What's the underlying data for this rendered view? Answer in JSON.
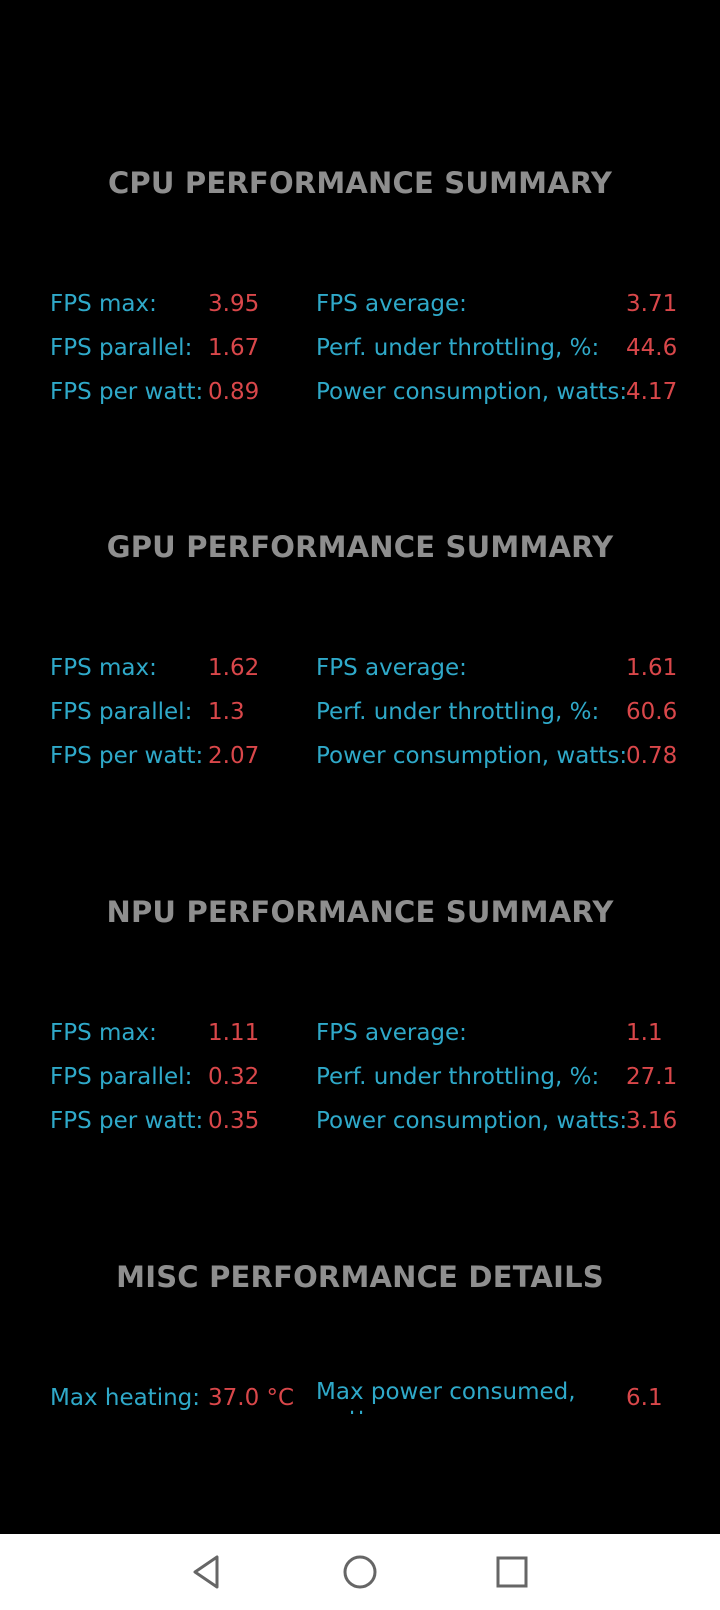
{
  "sections": [
    {
      "title": "CPU PERFORMANCE SUMMARY",
      "rows": [
        {
          "left_label": "FPS max:",
          "left_value": "3.95",
          "right_label": "FPS average:",
          "right_value": "3.71"
        },
        {
          "left_label": "FPS parallel:",
          "left_value": "1.67",
          "right_label": "Perf. under throttling, %:",
          "right_value": "44.6"
        },
        {
          "left_label": "FPS per watt:",
          "left_value": "0.89",
          "right_label": "Power consumption, watts:",
          "right_value": "4.17"
        }
      ]
    },
    {
      "title": "GPU PERFORMANCE SUMMARY",
      "rows": [
        {
          "left_label": "FPS max:",
          "left_value": "1.62",
          "right_label": "FPS average:",
          "right_value": "1.61"
        },
        {
          "left_label": "FPS parallel:",
          "left_value": "1.3",
          "right_label": "Perf. under throttling, %:",
          "right_value": "60.6"
        },
        {
          "left_label": "FPS per watt:",
          "left_value": "2.07",
          "right_label": "Power consumption, watts:",
          "right_value": "0.78"
        }
      ]
    },
    {
      "title": "NPU PERFORMANCE SUMMARY",
      "rows": [
        {
          "left_label": "FPS max:",
          "left_value": "1.11",
          "right_label": "FPS average:",
          "right_value": "1.1"
        },
        {
          "left_label": "FPS parallel:",
          "left_value": "0.32",
          "right_label": "Perf. under throttling, %:",
          "right_value": "27.1"
        },
        {
          "left_label": "FPS per watt:",
          "left_value": "0.35",
          "right_label": "Power consumption, watts:",
          "right_value": "3.16"
        }
      ]
    }
  ],
  "misc": {
    "title": "MISC PERFORMANCE DETAILS",
    "left_label": "Max heating:",
    "left_value": "37.0 °C",
    "right_label": "Max power consumed, watts:",
    "right_value": "6.1"
  },
  "navbar": {
    "back_icon": "back-triangle-icon",
    "home_icon": "home-circle-icon",
    "recents_icon": "recents-square-icon"
  }
}
